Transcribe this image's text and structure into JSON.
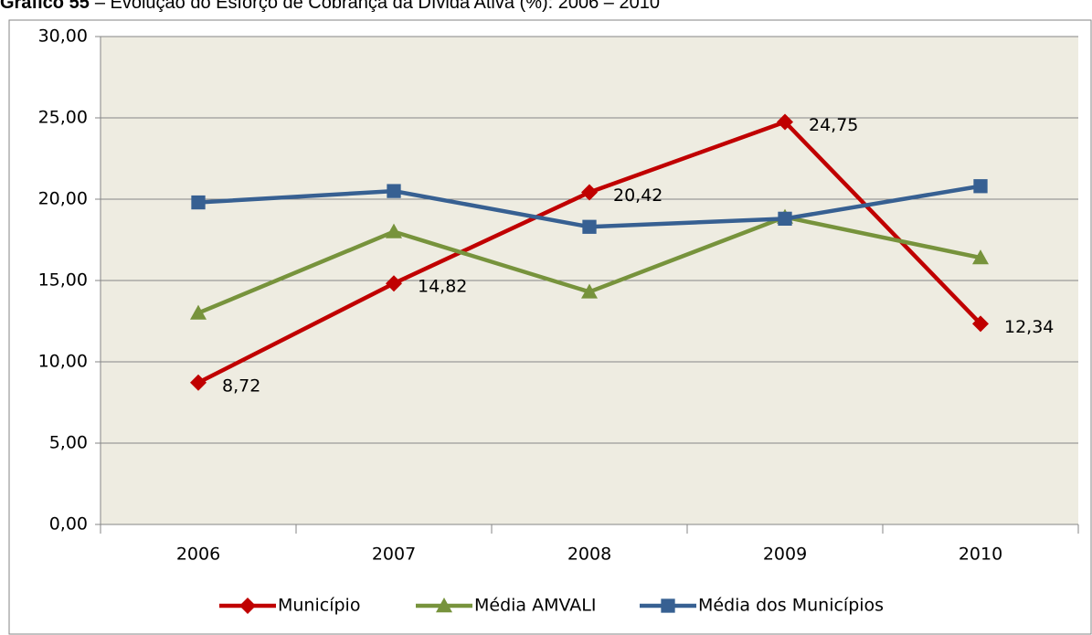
{
  "chart_data": {
    "type": "line",
    "title_number": "Gráfico 55",
    "title": "– Evolução do Esforço de Cobrança da Dívida Ativa (%): 2006 – 2010",
    "categories": [
      "2006",
      "2007",
      "2008",
      "2009",
      "2010"
    ],
    "series": [
      {
        "name": "Município",
        "color": "#c00000",
        "marker": "diamond",
        "values": [
          8.72,
          14.82,
          20.42,
          24.75,
          12.34
        ],
        "value_labels": [
          "8,72",
          "14,82",
          "20,42",
          "24,75",
          "12,34"
        ]
      },
      {
        "name": "Média AMVALI",
        "color": "#77933c",
        "marker": "triangle",
        "values": [
          13.0,
          18.0,
          14.3,
          18.9,
          16.4
        ]
      },
      {
        "name": "Média dos Municípios",
        "color": "#376092",
        "marker": "square",
        "values": [
          19.8,
          20.5,
          18.3,
          18.8,
          20.8
        ]
      }
    ],
    "ylim": [
      0,
      30
    ],
    "yticks": [
      {
        "value": 0,
        "label": "0,00"
      },
      {
        "value": 5,
        "label": "5,00"
      },
      {
        "value": 10,
        "label": "10,00"
      },
      {
        "value": 15,
        "label": "15,00"
      },
      {
        "value": 20,
        "label": "20,00"
      },
      {
        "value": 25,
        "label": "25,00"
      },
      {
        "value": 30,
        "label": "30,00"
      }
    ],
    "grid": true
  }
}
